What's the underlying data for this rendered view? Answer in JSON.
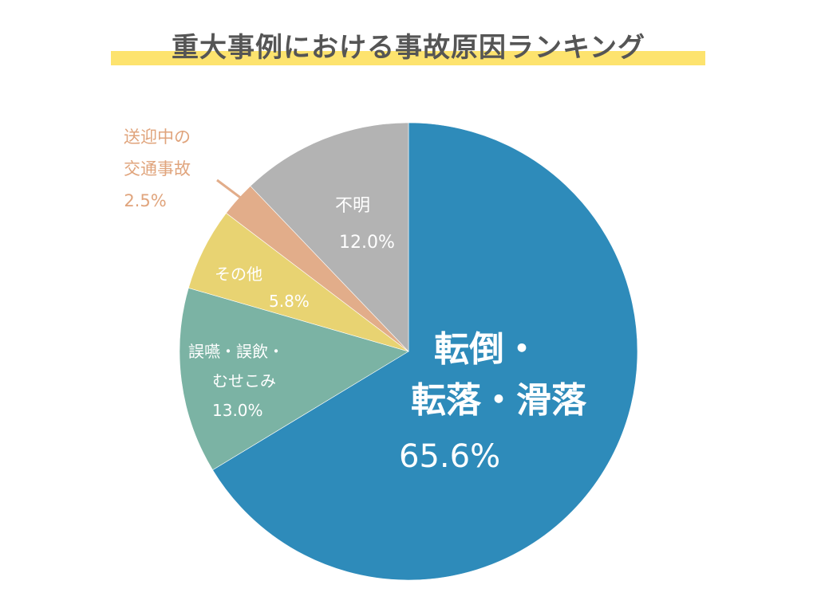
{
  "title": "重大事例における事故原因ランキング",
  "colors": {
    "title_text": "#555555",
    "title_highlight": "#fde36e"
  },
  "labels": {
    "tentou": {
      "line1": "転倒・",
      "line2": "転落・滑落",
      "value": "65.6%"
    },
    "goen": {
      "line1": "誤嚥・誤飲・",
      "line2": "むせこみ",
      "value": "13.0%"
    },
    "sonota": {
      "line1": "その他",
      "value": "5.8%"
    },
    "kotsu": {
      "line1": "送迎中の",
      "line2": "交通事故",
      "value": "2.5%"
    },
    "fumei": {
      "line1": "不明",
      "value": "12.0%"
    }
  },
  "chart_data": {
    "type": "pie",
    "title": "重大事例における事故原因ランキング",
    "start_angle": "12 o'clock, clockwise",
    "categories": [
      "転倒・転落・滑落",
      "誤嚥・誤飲・むせこみ",
      "その他",
      "送迎中の交通事故",
      "不明"
    ],
    "values": [
      65.6,
      13.0,
      5.8,
      2.5,
      12.0
    ],
    "unit": "%",
    "colors": [
      "#2e8bba",
      "#7bb3a4",
      "#e8d372",
      "#e2ad8a",
      "#b3b3b3"
    ],
    "legend": "none (direct labels)",
    "label_positions": {
      "転倒・転落・滑落": "inside",
      "誤嚥・誤飲・むせこみ": "inside",
      "その他": "inside",
      "送迎中の交通事故": "outside with leader line",
      "不明": "inside"
    }
  }
}
